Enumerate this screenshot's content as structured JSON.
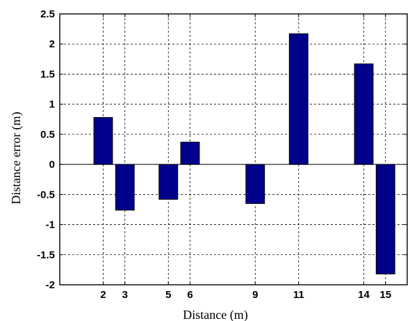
{
  "chart_data": {
    "type": "bar",
    "x": [
      2,
      3,
      5,
      6,
      9,
      11,
      14,
      15
    ],
    "values": [
      0.78,
      -0.76,
      -0.58,
      0.37,
      -0.65,
      2.17,
      1.67,
      -1.82
    ],
    "xticks": [
      "2",
      "3",
      "5",
      "6",
      "9",
      "11",
      "14",
      "15"
    ],
    "yticks": [
      "2.5",
      "2",
      "1.5",
      "1",
      "0.5",
      "0",
      "-0.5",
      "-1",
      "-1.5",
      "-2"
    ],
    "xlim": [
      0,
      16
    ],
    "ylim": [
      -2,
      2.5
    ],
    "xlabel": "Distance (m)",
    "ylabel": "Distance error (m)",
    "grid": true,
    "bar_color": "#00008b"
  }
}
